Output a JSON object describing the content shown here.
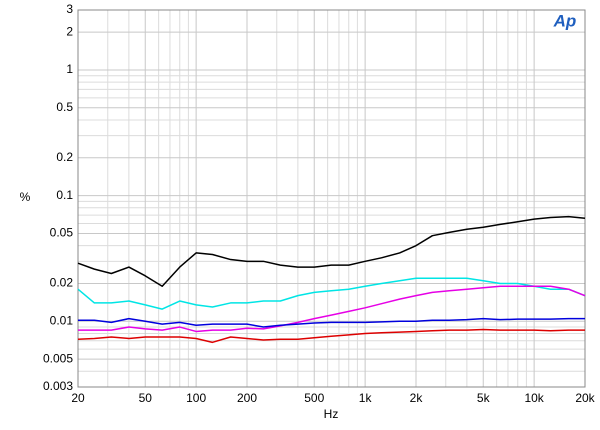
{
  "chart_data": {
    "type": "line",
    "logo": "Ap",
    "x_label": "Hz",
    "y_label": "%",
    "log_x": true,
    "log_y": true,
    "grid": true,
    "xlim": [
      20,
      20000
    ],
    "ylim": [
      0.003,
      3
    ],
    "xticks": [
      20,
      50,
      100,
      200,
      500,
      {
        "value": 1000,
        "label": "1k"
      },
      {
        "value": 2000,
        "label": "2k"
      },
      {
        "value": 5000,
        "label": "5k"
      },
      {
        "value": 10000,
        "label": "10k"
      },
      {
        "value": 20000,
        "label": "20k"
      }
    ],
    "yticks": [
      0.003,
      0.005,
      0.01,
      0.02,
      0.05,
      0.1,
      0.2,
      0.5,
      1,
      2,
      3
    ],
    "x": [
      20,
      25,
      31.5,
      40,
      50,
      63,
      80,
      100,
      125,
      160,
      200,
      250,
      315,
      400,
      500,
      630,
      800,
      1000,
      1250,
      1600,
      2000,
      2500,
      3150,
      4000,
      5000,
      6300,
      8000,
      10000,
      12500,
      16000,
      20000
    ],
    "series": [
      {
        "color": "#000000",
        "values": [
          0.029,
          0.026,
          0.024,
          0.027,
          0.023,
          0.019,
          0.027,
          0.035,
          0.034,
          0.031,
          0.03,
          0.03,
          0.028,
          0.027,
          0.027,
          0.028,
          0.028,
          0.03,
          0.032,
          0.035,
          0.04,
          0.048,
          0.051,
          0.054,
          0.056,
          0.059,
          0.062,
          0.065,
          0.067,
          0.068,
          0.066
        ]
      },
      {
        "color": "#00e5e5",
        "values": [
          0.018,
          0.014,
          0.014,
          0.0145,
          0.0135,
          0.0125,
          0.0145,
          0.0135,
          0.013,
          0.014,
          0.014,
          0.0145,
          0.0145,
          0.016,
          0.017,
          0.0175,
          0.018,
          0.019,
          0.02,
          0.021,
          0.022,
          0.022,
          0.022,
          0.022,
          0.021,
          0.02,
          0.02,
          0.019,
          0.018,
          0.018,
          0.016
        ]
      },
      {
        "color": "#e600e6",
        "values": [
          0.0085,
          0.0085,
          0.0085,
          0.009,
          0.0087,
          0.0085,
          0.009,
          0.0083,
          0.0085,
          0.0085,
          0.0088,
          0.0087,
          0.0092,
          0.0098,
          0.0105,
          0.0112,
          0.012,
          0.0128,
          0.0138,
          0.015,
          0.016,
          0.017,
          0.0175,
          0.018,
          0.0185,
          0.019,
          0.019,
          0.019,
          0.019,
          0.018,
          0.016
        ]
      },
      {
        "color": "#0000dd",
        "values": [
          0.0102,
          0.0102,
          0.0098,
          0.0105,
          0.01,
          0.0095,
          0.0098,
          0.0093,
          0.0095,
          0.0095,
          0.0095,
          0.009,
          0.0093,
          0.0095,
          0.0097,
          0.0098,
          0.0098,
          0.0098,
          0.0099,
          0.01,
          0.01,
          0.0102,
          0.0102,
          0.0103,
          0.0105,
          0.0103,
          0.0104,
          0.0104,
          0.0104,
          0.0105,
          0.0105
        ]
      },
      {
        "color": "#dd0000",
        "values": [
          0.0072,
          0.0073,
          0.0075,
          0.0073,
          0.0075,
          0.0075,
          0.0075,
          0.0073,
          0.0068,
          0.0075,
          0.0073,
          0.0071,
          0.0072,
          0.0072,
          0.0074,
          0.0076,
          0.0078,
          0.008,
          0.0081,
          0.0082,
          0.0083,
          0.0084,
          0.0085,
          0.0085,
          0.0086,
          0.0085,
          0.0085,
          0.0085,
          0.0084,
          0.0085,
          0.0085
        ]
      }
    ]
  }
}
